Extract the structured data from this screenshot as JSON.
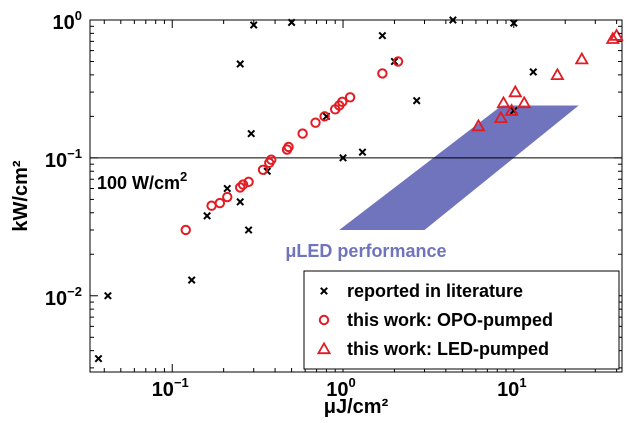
{
  "chart_data": {
    "type": "scatter",
    "x_scale": "log",
    "y_scale": "log",
    "xlim": [
      0.033,
      43
    ],
    "ylim": [
      0.0028,
      1.0
    ],
    "xlabel": "μJ/cm²",
    "ylabel": "kW/cm²",
    "grid": false,
    "x_ticks": [
      {
        "value": 0.1,
        "mantissa": "10",
        "exp": "−1"
      },
      {
        "value": 1,
        "mantissa": "10",
        "exp": "0"
      },
      {
        "value": 10,
        "mantissa": "10",
        "exp": "1"
      }
    ],
    "y_ticks": [
      {
        "value": 0.01,
        "mantissa": "10",
        "exp": "−2"
      },
      {
        "value": 0.1,
        "mantissa": "10",
        "exp": "−1"
      },
      {
        "value": 1,
        "mantissa": "10",
        "exp": "0"
      }
    ],
    "colors": {
      "literature": "#000000",
      "opo": "#e31b23",
      "led": "#e31b23",
      "region": "#6f74bd"
    },
    "series": [
      {
        "name": "reported in literature",
        "marker": "x",
        "points": [
          [
            0.037,
            0.0035
          ],
          [
            0.042,
            0.01
          ],
          [
            0.13,
            0.013
          ],
          [
            0.16,
            0.038
          ],
          [
            0.21,
            0.06
          ],
          [
            0.25,
            0.048
          ],
          [
            0.25,
            0.48
          ],
          [
            0.28,
            0.03
          ],
          [
            0.29,
            0.15
          ],
          [
            0.3,
            0.92
          ],
          [
            0.36,
            0.08
          ],
          [
            0.5,
            0.96
          ],
          [
            0.8,
            0.2
          ],
          [
            1.0,
            0.1
          ],
          [
            1.3,
            0.11
          ],
          [
            1.7,
            0.77
          ],
          [
            2.0,
            0.5
          ],
          [
            2.7,
            0.26
          ],
          [
            4.4,
            1.02
          ],
          [
            10.0,
            0.95
          ],
          [
            10.0,
            0.22
          ],
          [
            13.0,
            0.42
          ]
        ]
      },
      {
        "name": "this work: OPO-pumped",
        "marker": "o",
        "points": [
          [
            0.12,
            0.03
          ],
          [
            0.17,
            0.045
          ],
          [
            0.19,
            0.047
          ],
          [
            0.21,
            0.052
          ],
          [
            0.25,
            0.061
          ],
          [
            0.26,
            0.064
          ],
          [
            0.28,
            0.067
          ],
          [
            0.34,
            0.082
          ],
          [
            0.37,
            0.092
          ],
          [
            0.38,
            0.097
          ],
          [
            0.47,
            0.115
          ],
          [
            0.48,
            0.12
          ],
          [
            0.58,
            0.15
          ],
          [
            0.69,
            0.18
          ],
          [
            0.78,
            0.2
          ],
          [
            0.9,
            0.225
          ],
          [
            0.95,
            0.24
          ],
          [
            0.99,
            0.255
          ],
          [
            1.1,
            0.275
          ],
          [
            1.7,
            0.41
          ],
          [
            2.1,
            0.5
          ]
        ]
      },
      {
        "name": "this work: LED-pumped",
        "marker": "triangle",
        "points": [
          [
            6.2,
            0.17
          ],
          [
            8.4,
            0.195
          ],
          [
            8.7,
            0.25
          ],
          [
            9.7,
            0.22
          ],
          [
            10.2,
            0.3
          ],
          [
            11.5,
            0.25
          ],
          [
            18.0,
            0.4
          ],
          [
            25.0,
            0.52
          ],
          [
            38.0,
            0.73
          ],
          [
            40.0,
            0.77
          ]
        ]
      }
    ],
    "region": {
      "label": "μLED performance",
      "polygon": [
        [
          0.95,
          0.03
        ],
        [
          3.0,
          0.03
        ],
        [
          24.0,
          0.24
        ],
        [
          8.5,
          0.24
        ]
      ]
    },
    "hline": {
      "y": 0.1,
      "label_base": "100 W/cm",
      "label_exp": "2"
    },
    "legend": {
      "position": "bottom-right"
    }
  }
}
